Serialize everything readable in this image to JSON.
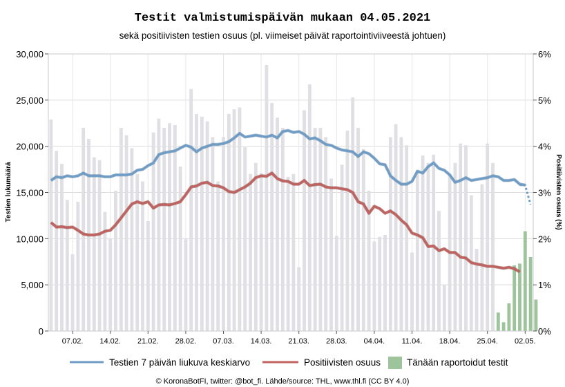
{
  "chart_data": {
    "type": "bar",
    "title": "Testit valmistumispäivän mukaan 04.05.2021",
    "subtitle": "sekä positiivisten testien osuus (pl. viimeiset päivät raportointiviiveestä johtuen)",
    "ylabel_left": "Testien lukumäärä",
    "ylabel_right": "Positiivisten osuus (%)",
    "ylim_left": [
      0,
      30000
    ],
    "ylim_right": [
      0,
      6
    ],
    "yticks_left": [
      "0",
      "5,000",
      "10,000",
      "15,000",
      "20,000",
      "25,000",
      "30,000"
    ],
    "yticks_right": [
      "0%",
      "1%",
      "2%",
      "3%",
      "4%",
      "5%",
      "6%"
    ],
    "xtick_labels": [
      "07.02.",
      "14.02.",
      "21.02.",
      "28.02.",
      "07.03.",
      "14.03.",
      "21.03.",
      "28.03.",
      "04.04.",
      "11.04.",
      "18.04.",
      "25.04.",
      "02.05."
    ],
    "grid": true,
    "legend_position": "bottom",
    "credit": "© KoronaBotFI, twitter: @bot_fi. Lähde/source: THL, www.thl.fi (CC BY 4.0)",
    "series": [
      {
        "name": "Daily tests",
        "type": "bar",
        "color": "#e0e0e4",
        "values": [
          22900,
          19500,
          18100,
          14200,
          8300,
          14000,
          22000,
          20800,
          18800,
          18500,
          12900,
          10000,
          15200,
          22000,
          21200,
          19800,
          17000,
          16200,
          11900,
          21500,
          23000,
          22000,
          22500,
          22300,
          17800,
          10000,
          26200,
          23500,
          23200,
          22700,
          21000,
          16200,
          21000,
          23500,
          24000,
          24200,
          19900,
          17000,
          18200,
          17100,
          28800,
          24700,
          23100,
          22000,
          16700,
          17000,
          6900,
          23900,
          26700,
          22000,
          22000,
          21000,
          16500,
          10300,
          18000,
          21700,
          25300,
          22000,
          19700,
          15200,
          9700,
          10200,
          10400,
          21000,
          22400,
          21000,
          20100,
          8500,
          17400,
          19000,
          18200,
          19100,
          13000,
          5000,
          17000,
          18200,
          20300,
          20100,
          14700,
          8900,
          15900,
          20300,
          18200,
          0,
          0,
          0,
          0,
          0,
          0,
          0
        ]
      },
      {
        "name": "Tänään raportoidut testit",
        "type": "bar",
        "color": "#9dc49a",
        "values": [
          0,
          0,
          0,
          0,
          0,
          0,
          0,
          0,
          0,
          0,
          0,
          0,
          0,
          0,
          0,
          0,
          0,
          0,
          0,
          0,
          0,
          0,
          0,
          0,
          0,
          0,
          0,
          0,
          0,
          0,
          0,
          0,
          0,
          0,
          0,
          0,
          0,
          0,
          0,
          0,
          0,
          0,
          0,
          0,
          0,
          0,
          0,
          0,
          0,
          0,
          0,
          0,
          0,
          0,
          0,
          0,
          0,
          0,
          0,
          0,
          0,
          0,
          0,
          0,
          0,
          0,
          0,
          0,
          0,
          0,
          0,
          0,
          0,
          0,
          0,
          0,
          0,
          0,
          0,
          0,
          0,
          0,
          0,
          2000,
          950,
          3000,
          7100,
          7300,
          10800,
          8000,
          3400
        ]
      },
      {
        "name": "Testien 7 päivän liukuva keskiarvo",
        "type": "line",
        "color": "#6f9cc4",
        "values": [
          16300,
          16700,
          16600,
          16800,
          16700,
          16800,
          17100,
          16800,
          16800,
          16800,
          16700,
          16700,
          16900,
          16900,
          16900,
          17000,
          17400,
          17500,
          17900,
          18200,
          19100,
          19300,
          19400,
          19500,
          19800,
          20100,
          19900,
          19400,
          19800,
          20000,
          20200,
          20200,
          20300,
          20500,
          20900,
          21400,
          21000,
          21100,
          21200,
          21100,
          21000,
          21200,
          20900,
          21600,
          21700,
          21500,
          21600,
          21300,
          20800,
          20900,
          20600,
          20200,
          20100,
          19800,
          19600,
          19500,
          19400,
          18900,
          19400,
          19200,
          18700,
          18100,
          18000,
          16800,
          16300,
          15900,
          15900,
          16200,
          17300,
          17100,
          17800,
          18200,
          17600,
          17400,
          16900,
          16100,
          16300,
          16600,
          16300,
          16400,
          16500,
          16600,
          16800,
          16700,
          16300,
          16300,
          16400,
          15900,
          15800,
          null
        ]
      },
      {
        "name": "Viimeiset päivät (keskiarvo, epävarma)",
        "type": "line",
        "color": "#6f9cc4",
        "dashed": true,
        "values": [
          null,
          null,
          null,
          null,
          null,
          null,
          null,
          null,
          null,
          null,
          null,
          null,
          null,
          null,
          null,
          null,
          null,
          null,
          null,
          null,
          null,
          null,
          null,
          null,
          null,
          null,
          null,
          null,
          null,
          null,
          null,
          null,
          null,
          null,
          null,
          null,
          null,
          null,
          null,
          null,
          null,
          null,
          null,
          null,
          null,
          null,
          null,
          null,
          null,
          null,
          null,
          null,
          null,
          null,
          null,
          null,
          null,
          null,
          null,
          null,
          null,
          null,
          null,
          null,
          null,
          null,
          null,
          null,
          null,
          null,
          null,
          null,
          null,
          null,
          null,
          null,
          null,
          null,
          null,
          null,
          null,
          null,
          null,
          null,
          null,
          null,
          null,
          15800,
          15600,
          13700
        ]
      },
      {
        "name": "Positiivisten osuus",
        "type": "line",
        "axis": "right",
        "color": "#c0625f",
        "values": [
          2.35,
          2.25,
          2.26,
          2.24,
          2.25,
          2.18,
          2.1,
          2.08,
          2.08,
          2.1,
          2.16,
          2.18,
          2.3,
          2.45,
          2.6,
          2.75,
          2.8,
          2.76,
          2.8,
          2.66,
          2.73,
          2.74,
          2.73,
          2.76,
          2.8,
          2.95,
          3.12,
          3.14,
          3.2,
          3.22,
          3.15,
          3.14,
          3.1,
          3.02,
          3.0,
          3.06,
          3.12,
          3.2,
          3.32,
          3.36,
          3.35,
          3.42,
          3.3,
          3.25,
          3.24,
          3.18,
          3.18,
          3.26,
          3.15,
          3.17,
          3.18,
          3.12,
          3.1,
          3.1,
          3.08,
          3.06,
          3.0,
          2.8,
          2.75,
          2.55,
          2.7,
          2.65,
          2.55,
          2.6,
          2.52,
          2.4,
          2.3,
          2.12,
          2.08,
          2.02,
          1.83,
          1.84,
          1.74,
          1.78,
          1.7,
          1.7,
          1.6,
          1.58,
          1.48,
          1.45,
          1.43,
          1.4,
          1.4,
          1.38,
          1.36,
          1.38,
          1.35,
          1.28,
          null,
          null
        ]
      }
    ]
  },
  "legend": {
    "items": [
      {
        "label": "Testien 7 päivän liukuva keskiarvo",
        "color": "#6f9cc4"
      },
      {
        "label": "Positiivisten osuus",
        "color": "#c0625f"
      },
      {
        "label": "Tänään raportoidut testit",
        "color": "#9dc49a"
      }
    ]
  }
}
